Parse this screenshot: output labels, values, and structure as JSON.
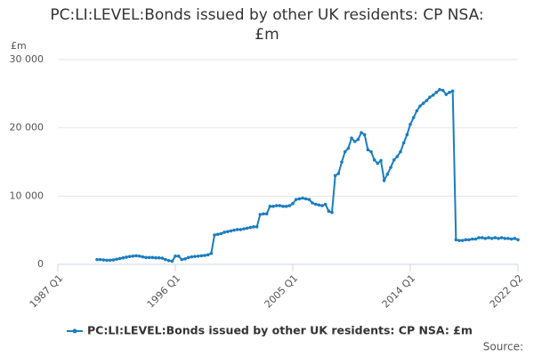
{
  "chart_data": {
    "type": "line",
    "title": "PC:LI:LEVEL:Bonds issued by other UK residents: CP NSA: £m",
    "y_unit": "£m",
    "source": "Source:",
    "categories": [
      "1987 Q1",
      null,
      null,
      null,
      null,
      null,
      null,
      null,
      null,
      null,
      null,
      null,
      null,
      null,
      null,
      null,
      null,
      null,
      null,
      null,
      null,
      null,
      null,
      null,
      null,
      null,
      null,
      null,
      null,
      null,
      null,
      null,
      null,
      null,
      null,
      null,
      "1996 Q1",
      null,
      null,
      null,
      null,
      null,
      null,
      null,
      null,
      null,
      null,
      null,
      null,
      null,
      null,
      null,
      null,
      null,
      null,
      null,
      null,
      null,
      null,
      null,
      null,
      null,
      null,
      null,
      null,
      null,
      null,
      null,
      null,
      null,
      null,
      null,
      "2005 Q1",
      null,
      null,
      null,
      null,
      null,
      null,
      null,
      null,
      null,
      null,
      null,
      null,
      null,
      null,
      null,
      null,
      null,
      null,
      null,
      null,
      null,
      null,
      null,
      null,
      null,
      null,
      null,
      null,
      null,
      null,
      null,
      null,
      null,
      null,
      null,
      "2014 Q1",
      null,
      null,
      null,
      null,
      null,
      null,
      null,
      null,
      null,
      null,
      null,
      null,
      null,
      null,
      null,
      null,
      null,
      null,
      null,
      null,
      null,
      null,
      null,
      null,
      null,
      null,
      null,
      null,
      null,
      null,
      null,
      null,
      "2022 Q2"
    ],
    "series": [
      {
        "name": "PC:LI:LEVEL:Bonds issued by other UK residents: CP NSA: £m",
        "color": "#1a7dbf",
        "values": [
          null,
          null,
          null,
          null,
          null,
          null,
          null,
          null,
          null,
          null,
          null,
          null,
          700,
          700,
          650,
          600,
          600,
          650,
          750,
          850,
          950,
          1050,
          1150,
          1200,
          1250,
          1200,
          1100,
          1000,
          1000,
          1000,
          950,
          950,
          900,
          700,
          550,
          450,
          1200,
          1200,
          700,
          800,
          1000,
          1100,
          1150,
          1200,
          1250,
          1300,
          1400,
          1600,
          4300,
          4400,
          4500,
          4700,
          4800,
          4900,
          5000,
          5100,
          5100,
          5200,
          5300,
          5400,
          5500,
          5500,
          7300,
          7400,
          7400,
          8500,
          8500,
          8600,
          8600,
          8500,
          8500,
          8600,
          8900,
          9500,
          9600,
          9700,
          9600,
          9500,
          9000,
          8800,
          8700,
          8600,
          8800,
          7800,
          7600,
          13000,
          13300,
          15000,
          16500,
          17000,
          18500,
          18000,
          18300,
          19300,
          19000,
          16800,
          16500,
          15300,
          14800,
          15200,
          12300,
          13200,
          14200,
          15300,
          15800,
          16500,
          17800,
          19000,
          20500,
          21500,
          22500,
          23200,
          23600,
          24000,
          24500,
          24800,
          25200,
          25600,
          25500,
          24900,
          25200,
          25400,
          3600,
          3500,
          3500,
          3600,
          3600,
          3700,
          3700,
          3900,
          3900,
          3800,
          3900,
          3800,
          3900,
          3800,
          3900,
          3800,
          3800,
          3700,
          3800,
          3600
        ]
      }
    ],
    "ylim": [
      0,
      30000
    ],
    "yticks": [
      0,
      {
        "value": 10000,
        "label": "10 000"
      },
      {
        "value": 20000,
        "label": "20 000"
      },
      {
        "value": 30000,
        "label": "30 000"
      }
    ],
    "grid": true
  }
}
